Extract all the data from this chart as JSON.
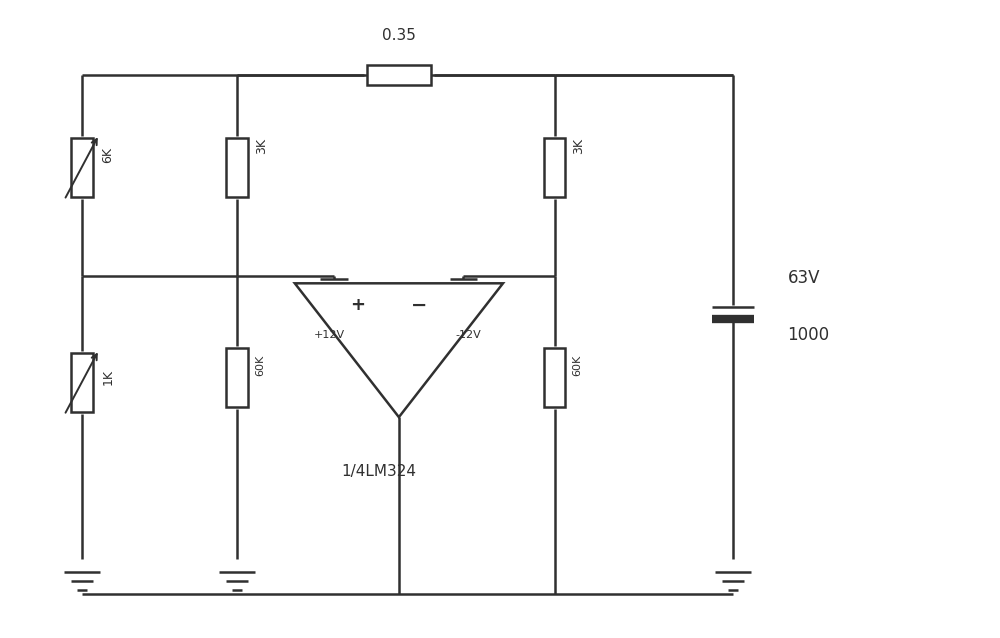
{
  "bg_color": "#ffffff",
  "line_color": "#303030",
  "line_width": 1.8,
  "fig_width": 10.0,
  "fig_height": 6.38,
  "resistor_035_label": "0.35",
  "resistor_6k_label": "6K",
  "resistor_3k_left_label": "3K",
  "resistor_3k_right_label": "3K",
  "resistor_1k_label": "1K",
  "resistor_60k_left_label": "60K",
  "resistor_60k_right_label": "60K",
  "cap_label_1": "63V",
  "cap_label_2": "1000",
  "opamp_label": "1/4LM324",
  "plus12v_label": "+12V",
  "minus12v_label": "-12V"
}
